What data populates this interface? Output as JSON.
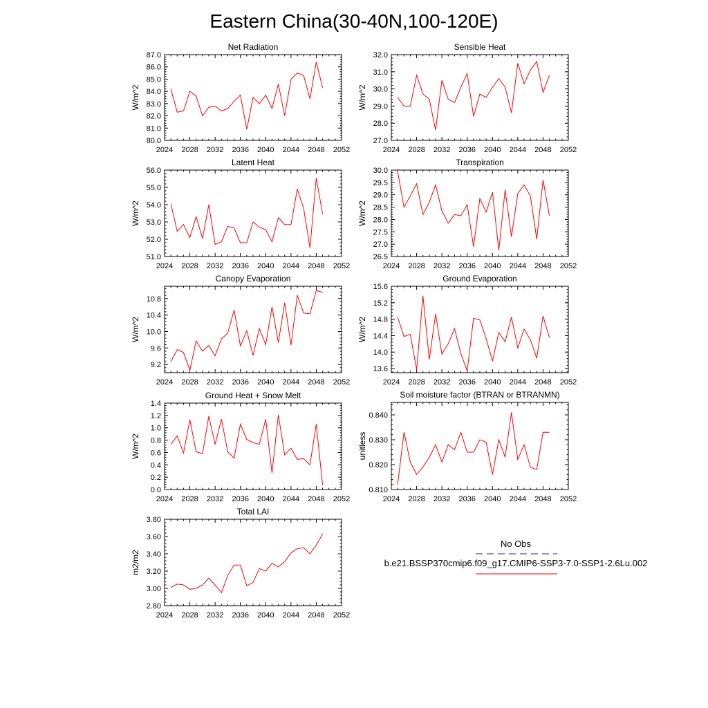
{
  "figure": {
    "title": "Eastern China(30-40N,100-120E)",
    "line_color": "#ff0000",
    "obs_color": "#2020a0"
  },
  "legend": {
    "obs_label": "No Obs",
    "case_label": "b.e21.BSSP370cmip6.f09_g17.CMIP6-SSP3-7.0-SSP1-2.6Lu.002"
  },
  "chart_data": [
    {
      "type": "line",
      "title": "Net Radiation",
      "ylabel": "W/m^2",
      "xlim": [
        2024,
        2052
      ],
      "ylim": [
        80.0,
        87.0
      ],
      "xticks": [
        2024,
        2028,
        2032,
        2036,
        2040,
        2044,
        2048,
        2052
      ],
      "yticks": [
        80.0,
        81.0,
        82.0,
        83.0,
        84.0,
        85.0,
        86.0,
        87.0
      ],
      "ydecimals": 1,
      "x": [
        2025,
        2026,
        2027,
        2028,
        2029,
        2030,
        2031,
        2032,
        2033,
        2034,
        2035,
        2036,
        2037,
        2038,
        2039,
        2040,
        2041,
        2042,
        2043,
        2044,
        2045,
        2046,
        2047,
        2048,
        2049
      ],
      "series": [
        {
          "values": [
            84.2,
            82.3,
            82.4,
            84.0,
            83.6,
            82.0,
            82.7,
            82.8,
            82.4,
            82.6,
            83.2,
            83.7,
            80.9,
            83.5,
            83.0,
            83.7,
            82.6,
            84.6,
            82.0,
            85.0,
            85.5,
            85.3,
            83.4,
            86.4,
            84.3
          ]
        }
      ]
    },
    {
      "type": "line",
      "title": "Sensible Heat",
      "ylabel": "W/m^2",
      "xlim": [
        2024,
        2052
      ],
      "ylim": [
        27.0,
        32.0
      ],
      "xticks": [
        2024,
        2028,
        2032,
        2036,
        2040,
        2044,
        2048,
        2052
      ],
      "yticks": [
        27.0,
        28.0,
        29.0,
        30.0,
        31.0,
        32.0
      ],
      "ydecimals": 1,
      "x": [
        2025,
        2026,
        2027,
        2028,
        2029,
        2030,
        2031,
        2032,
        2033,
        2034,
        2035,
        2036,
        2037,
        2038,
        2039,
        2040,
        2041,
        2042,
        2043,
        2044,
        2045,
        2046,
        2047,
        2048,
        2049
      ],
      "series": [
        {
          "values": [
            29.5,
            29.0,
            29.0,
            30.8,
            29.7,
            29.4,
            27.6,
            30.5,
            29.4,
            29.2,
            30.1,
            30.9,
            28.4,
            29.7,
            29.5,
            30.1,
            30.6,
            30.1,
            28.6,
            31.5,
            30.3,
            31.1,
            31.6,
            29.8,
            30.8
          ]
        }
      ]
    },
    {
      "type": "line",
      "title": "Latent Heat",
      "ylabel": "W/m^2",
      "xlim": [
        2024,
        2052
      ],
      "ylim": [
        51.0,
        56.0
      ],
      "xticks": [
        2024,
        2028,
        2032,
        2036,
        2040,
        2044,
        2048,
        2052
      ],
      "yticks": [
        51.0,
        52.0,
        53.0,
        54.0,
        55.0,
        56.0
      ],
      "ydecimals": 1,
      "x": [
        2025,
        2026,
        2027,
        2028,
        2029,
        2030,
        2031,
        2032,
        2033,
        2034,
        2035,
        2036,
        2037,
        2038,
        2039,
        2040,
        2041,
        2042,
        2043,
        2044,
        2045,
        2046,
        2047,
        2048,
        2049
      ],
      "series": [
        {
          "values": [
            54.05,
            52.45,
            52.85,
            52.1,
            53.3,
            52.05,
            54.0,
            51.7,
            51.85,
            52.75,
            52.65,
            51.8,
            51.8,
            53.0,
            52.7,
            52.55,
            51.85,
            53.25,
            52.85,
            52.85,
            54.9,
            53.8,
            51.5,
            55.55,
            53.45
          ]
        }
      ]
    },
    {
      "type": "line",
      "title": "Transpiration",
      "ylabel": "W/m^2",
      "xlim": [
        2024,
        2052
      ],
      "ylim": [
        26.5,
        30.0
      ],
      "xticks": [
        2024,
        2028,
        2032,
        2036,
        2040,
        2044,
        2048,
        2052
      ],
      "yticks": [
        26.5,
        27.0,
        27.5,
        28.0,
        28.5,
        29.0,
        29.5,
        30.0
      ],
      "ydecimals": 1,
      "x": [
        2025,
        2026,
        2027,
        2028,
        2029,
        2030,
        2031,
        2032,
        2033,
        2034,
        2035,
        2036,
        2037,
        2038,
        2039,
        2040,
        2041,
        2042,
        2043,
        2044,
        2045,
        2046,
        2047,
        2048,
        2049
      ],
      "series": [
        {
          "values": [
            29.95,
            28.5,
            28.95,
            29.45,
            28.2,
            28.7,
            29.4,
            28.35,
            27.85,
            28.2,
            28.15,
            28.6,
            26.9,
            28.85,
            28.3,
            29.1,
            26.75,
            29.2,
            27.3,
            29.05,
            29.4,
            28.95,
            27.2,
            29.6,
            28.15
          ]
        }
      ]
    },
    {
      "type": "line",
      "title": "Canopy Evaporation",
      "ylabel": "W/m^2",
      "xlim": [
        2024,
        2052
      ],
      "ylim": [
        9.0,
        11.1
      ],
      "xticks": [
        2024,
        2028,
        2032,
        2036,
        2040,
        2044,
        2048,
        2052
      ],
      "yticks": [
        9.2,
        9.6,
        10.0,
        10.4,
        10.8
      ],
      "ydecimals": 1,
      "x": [
        2025,
        2026,
        2027,
        2028,
        2029,
        2030,
        2031,
        2032,
        2033,
        2034,
        2035,
        2036,
        2037,
        2038,
        2039,
        2040,
        2041,
        2042,
        2043,
        2044,
        2045,
        2046,
        2047,
        2048,
        2049
      ],
      "series": [
        {
          "values": [
            9.27,
            9.56,
            9.49,
            9.06,
            9.77,
            9.52,
            9.66,
            9.41,
            9.82,
            9.96,
            10.52,
            9.65,
            10.02,
            9.42,
            10.07,
            9.68,
            10.6,
            9.73,
            10.7,
            9.67,
            10.88,
            10.45,
            10.43,
            11.0,
            10.95
          ]
        }
      ]
    },
    {
      "type": "line",
      "title": "Ground Evaporation",
      "ylabel": "W/m^2",
      "xlim": [
        2024,
        2052
      ],
      "ylim": [
        13.5,
        15.6
      ],
      "xticks": [
        2024,
        2028,
        2032,
        2036,
        2040,
        2044,
        2048,
        2052
      ],
      "yticks": [
        13.6,
        14.0,
        14.4,
        14.8,
        15.2,
        15.6
      ],
      "ydecimals": 1,
      "x": [
        2025,
        2026,
        2027,
        2028,
        2029,
        2030,
        2031,
        2032,
        2033,
        2034,
        2035,
        2036,
        2037,
        2038,
        2039,
        2040,
        2041,
        2042,
        2043,
        2044,
        2045,
        2046,
        2047,
        2048,
        2049
      ],
      "series": [
        {
          "values": [
            14.85,
            14.38,
            14.43,
            13.57,
            15.37,
            13.82,
            14.93,
            13.95,
            14.2,
            14.57,
            13.96,
            13.54,
            14.82,
            14.78,
            14.33,
            13.78,
            14.48,
            14.25,
            14.85,
            14.1,
            14.56,
            14.3,
            13.85,
            14.88,
            14.35
          ]
        }
      ]
    },
    {
      "type": "line",
      "title": "Ground Heat + Snow Melt",
      "ylabel": "W/m^2",
      "xlim": [
        2024,
        2052
      ],
      "ylim": [
        0.0,
        1.4
      ],
      "xticks": [
        2024,
        2028,
        2032,
        2036,
        2040,
        2044,
        2048,
        2052
      ],
      "yticks": [
        0.0,
        0.2,
        0.4,
        0.6,
        0.8,
        1.0,
        1.2,
        1.4
      ],
      "ydecimals": 1,
      "x": [
        2025,
        2026,
        2027,
        2028,
        2029,
        2030,
        2031,
        2032,
        2033,
        2034,
        2035,
        2036,
        2037,
        2038,
        2039,
        2040,
        2041,
        2042,
        2043,
        2044,
        2045,
        2046,
        2047,
        2048,
        2049
      ],
      "series": [
        {
          "values": [
            0.73,
            0.87,
            0.59,
            1.13,
            0.61,
            0.58,
            1.19,
            0.73,
            1.14,
            0.61,
            0.51,
            1.06,
            0.81,
            0.76,
            0.73,
            1.14,
            0.27,
            1.21,
            0.56,
            0.67,
            0.49,
            0.5,
            0.4,
            1.06,
            0.07
          ]
        }
      ]
    },
    {
      "type": "line",
      "title": "Soil moisture factor (BTRAN or BTRANMN)",
      "ylabel": "unitless",
      "xlim": [
        2024,
        2052
      ],
      "ylim": [
        0.81,
        0.845
      ],
      "xticks": [
        2024,
        2028,
        2032,
        2036,
        2040,
        2044,
        2048,
        2052
      ],
      "yticks": [
        0.81,
        0.82,
        0.83,
        0.84
      ],
      "ydecimals": 3,
      "x": [
        2025,
        2026,
        2027,
        2028,
        2029,
        2030,
        2031,
        2032,
        2033,
        2034,
        2035,
        2036,
        2037,
        2038,
        2039,
        2040,
        2041,
        2042,
        2043,
        2044,
        2045,
        2046,
        2047,
        2048,
        2049
      ],
      "series": [
        {
          "values": [
            0.812,
            0.833,
            0.821,
            0.816,
            0.819,
            0.823,
            0.828,
            0.821,
            0.828,
            0.826,
            0.833,
            0.825,
            0.825,
            0.83,
            0.829,
            0.816,
            0.83,
            0.823,
            0.841,
            0.822,
            0.828,
            0.819,
            0.818,
            0.833,
            0.833
          ]
        }
      ]
    },
    {
      "type": "line",
      "title": "Total LAI",
      "ylabel": "m2/m2",
      "xlim": [
        2024,
        2052
      ],
      "ylim": [
        2.8,
        3.8
      ],
      "xticks": [
        2024,
        2028,
        2032,
        2036,
        2040,
        2044,
        2048,
        2052
      ],
      "yticks": [
        2.8,
        3.0,
        3.2,
        3.4,
        3.6,
        3.8
      ],
      "ydecimals": 2,
      "x": [
        2025,
        2026,
        2027,
        2028,
        2029,
        2030,
        2031,
        2032,
        2033,
        2034,
        2035,
        2036,
        2037,
        2038,
        2039,
        2040,
        2041,
        2042,
        2043,
        2044,
        2045,
        2046,
        2047,
        2048,
        2049
      ],
      "series": [
        {
          "values": [
            3.01,
            3.05,
            3.04,
            2.99,
            3.0,
            3.04,
            3.12,
            3.04,
            2.95,
            3.15,
            3.27,
            3.27,
            3.03,
            3.07,
            3.23,
            3.2,
            3.29,
            3.25,
            3.31,
            3.41,
            3.46,
            3.47,
            3.4,
            3.5,
            3.63
          ]
        }
      ]
    }
  ]
}
